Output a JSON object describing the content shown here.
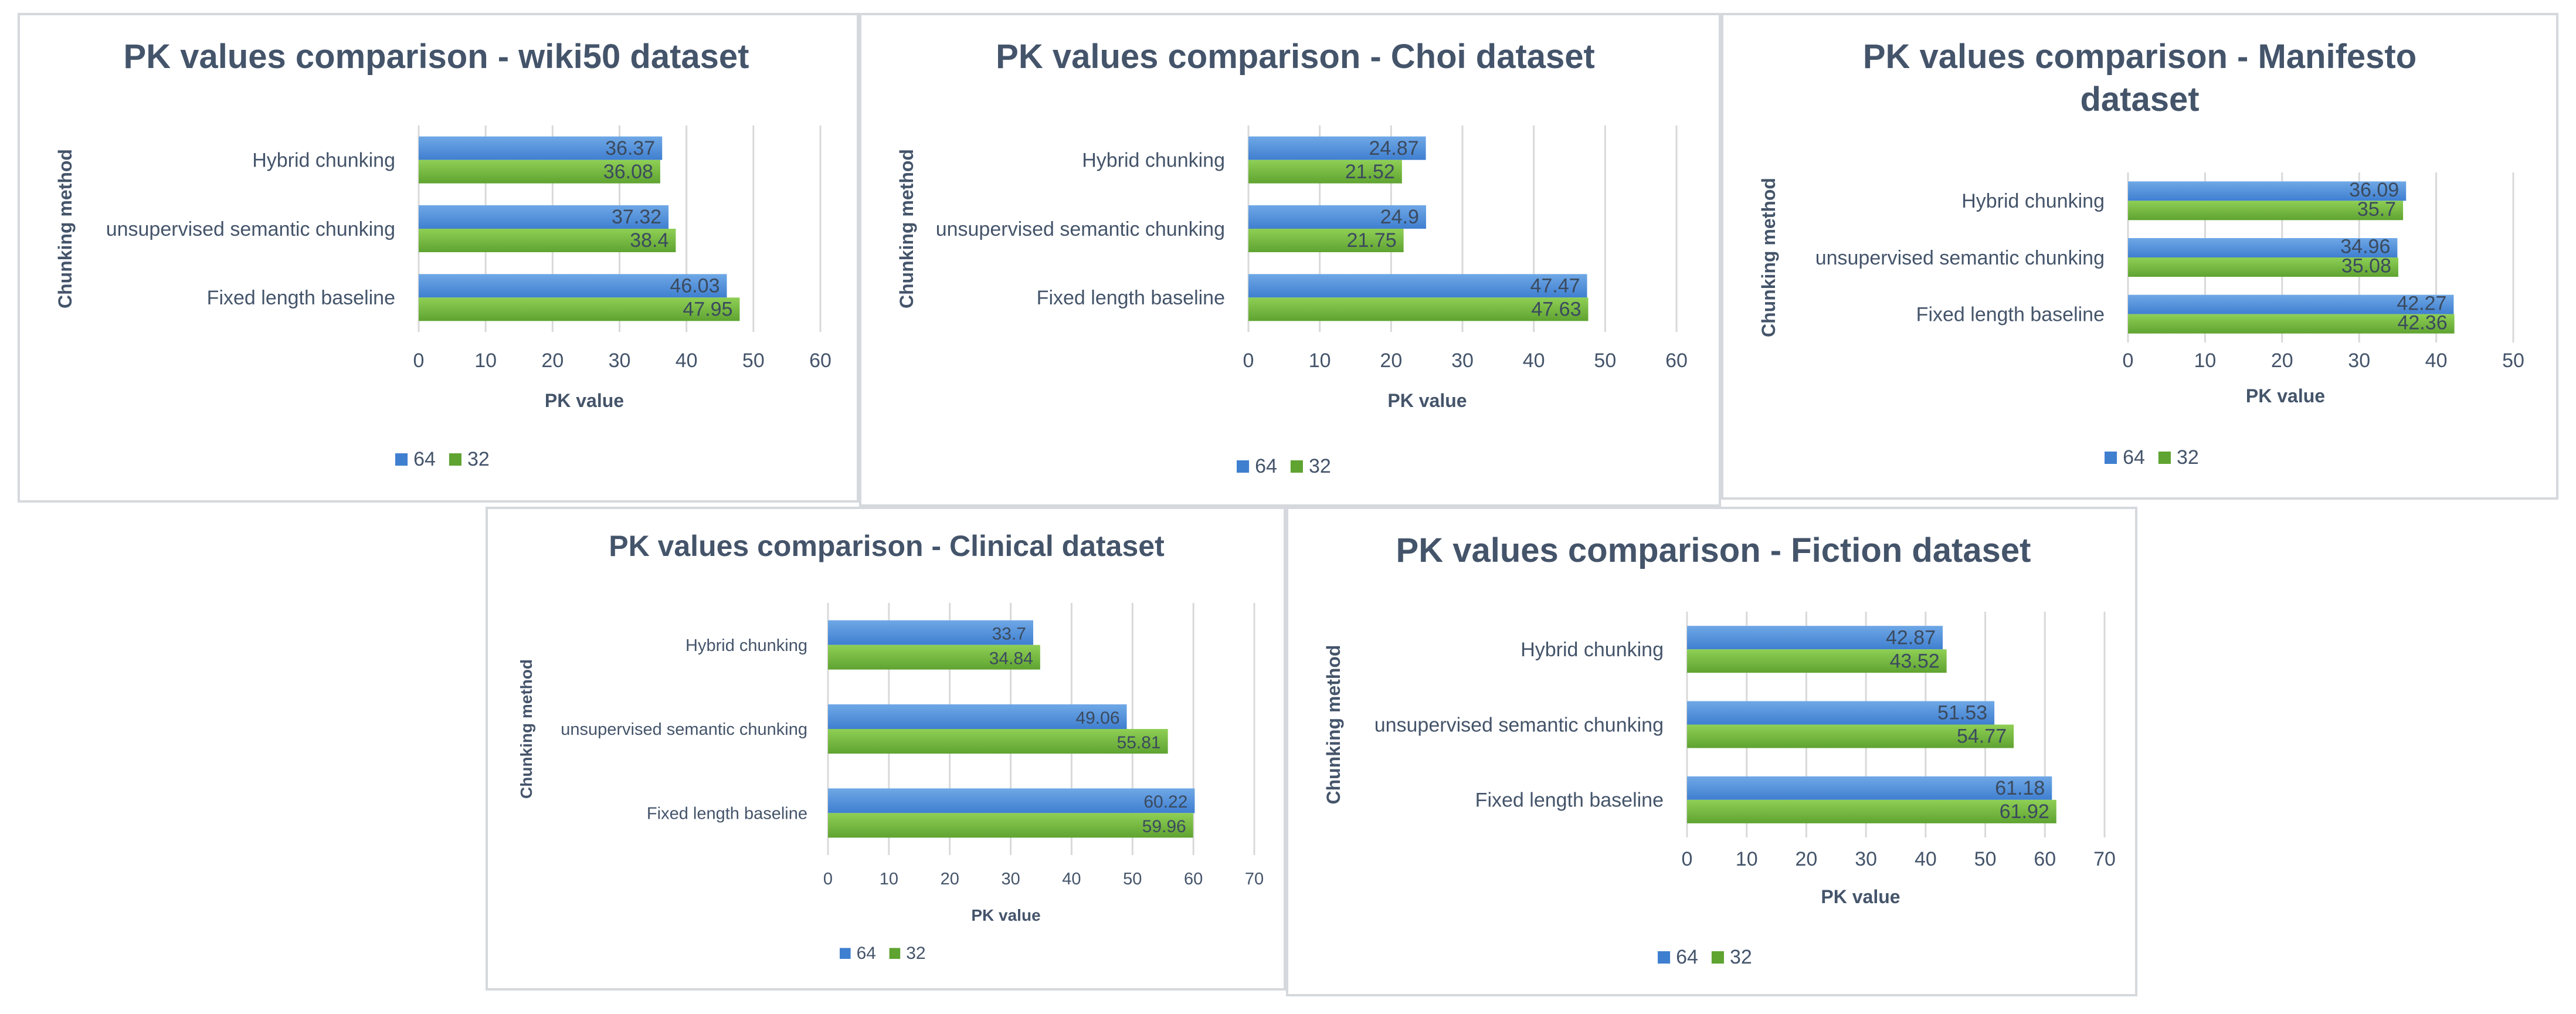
{
  "colors": {
    "series_64_top": "#6fa8e6",
    "series_64_bottom": "#3f7fd0",
    "series_32_top": "#8fcf55",
    "series_32_bottom": "#5fa331"
  },
  "chart_data": [
    {
      "type": "bar",
      "orientation": "horizontal",
      "title": "PK values comparison - wiki50 dataset",
      "xlabel": "PK value",
      "ylabel": "Chunking method",
      "categories": [
        "Hybrid chunking",
        "unsupervised semantic chunking",
        "Fixed length baseline"
      ],
      "series": [
        {
          "name": "64",
          "values": [
            36.37,
            37.32,
            46.03
          ]
        },
        {
          "name": "32",
          "values": [
            36.08,
            38.4,
            47.95
          ]
        }
      ],
      "xlim": [
        0,
        60
      ],
      "xticks": [
        "0",
        "10",
        "20",
        "30",
        "40",
        "50",
        "60"
      ],
      "data_labels": {
        "64": [
          "36.37",
          "37.32",
          "46.03"
        ],
        "32": [
          "36.08",
          "38.4",
          "47.95"
        ]
      },
      "legend": [
        "64",
        "32"
      ],
      "legend_position": "bottom",
      "grid": true
    },
    {
      "type": "bar",
      "orientation": "horizontal",
      "title": "PK values comparison - Choi dataset",
      "xlabel": "PK value",
      "ylabel": "Chunking method",
      "categories": [
        "Hybrid chunking",
        "unsupervised semantic chunking",
        "Fixed length baseline"
      ],
      "series": [
        {
          "name": "64",
          "values": [
            24.87,
            24.9,
            47.47
          ]
        },
        {
          "name": "32",
          "values": [
            21.52,
            21.75,
            47.63
          ]
        }
      ],
      "xlim": [
        0,
        60
      ],
      "xticks": [
        "0",
        "10",
        "20",
        "30",
        "40",
        "50",
        "60"
      ],
      "data_labels": {
        "64": [
          "24.87",
          "24.9",
          "47.47"
        ],
        "32": [
          "21.52",
          "21.75",
          "47.63"
        ]
      },
      "legend": [
        "64",
        "32"
      ],
      "legend_position": "bottom",
      "grid": true
    },
    {
      "type": "bar",
      "orientation": "horizontal",
      "title": "PK values comparison - Manifesto dataset",
      "xlabel": "PK value",
      "ylabel": "Chunking method",
      "categories": [
        "Hybrid chunking",
        "unsupervised semantic chunking",
        "Fixed length baseline"
      ],
      "series": [
        {
          "name": "64",
          "values": [
            36.09,
            34.96,
            42.27
          ]
        },
        {
          "name": "32",
          "values": [
            35.7,
            35.08,
            42.36
          ]
        }
      ],
      "xlim": [
        0,
        50
      ],
      "xticks": [
        "0",
        "10",
        "20",
        "30",
        "40",
        "50"
      ],
      "data_labels": {
        "64": [
          "36.09",
          "34.96",
          "42.27"
        ],
        "32": [
          "35.7",
          "35.08",
          "42.36"
        ]
      },
      "legend": [
        "64",
        "32"
      ],
      "legend_position": "bottom",
      "grid": true
    },
    {
      "type": "bar",
      "orientation": "horizontal",
      "title": "PK values comparison - Clinical dataset",
      "xlabel": "PK value",
      "ylabel": "Chunking method",
      "categories": [
        "Hybrid chunking",
        "unsupervised semantic chunking",
        "Fixed length baseline"
      ],
      "series": [
        {
          "name": "64",
          "values": [
            33.7,
            49.06,
            60.22
          ]
        },
        {
          "name": "32",
          "values": [
            34.84,
            55.81,
            59.96
          ]
        }
      ],
      "xlim": [
        0,
        70
      ],
      "xticks": [
        "0",
        "10",
        "20",
        "30",
        "40",
        "50",
        "60",
        "70"
      ],
      "data_labels": {
        "64": [
          "33.7",
          "49.06",
          "60.22"
        ],
        "32": [
          "34.84",
          "55.81",
          "59.96"
        ]
      },
      "legend": [
        "64",
        "32"
      ],
      "legend_position": "bottom",
      "grid": true
    },
    {
      "type": "bar",
      "orientation": "horizontal",
      "title": "PK values comparison - Fiction dataset",
      "xlabel": "PK value",
      "ylabel": "Chunking method",
      "categories": [
        "Hybrid chunking",
        "unsupervised semantic chunking",
        "Fixed length baseline"
      ],
      "series": [
        {
          "name": "64",
          "values": [
            42.87,
            51.53,
            61.18
          ]
        },
        {
          "name": "32",
          "values": [
            43.52,
            54.77,
            61.92
          ]
        }
      ],
      "xlim": [
        0,
        70
      ],
      "xticks": [
        "0",
        "10",
        "20",
        "30",
        "40",
        "50",
        "60",
        "70"
      ],
      "data_labels": {
        "64": [
          "42.87",
          "51.53",
          "61.18"
        ],
        "32": [
          "43.52",
          "54.77",
          "61.92"
        ]
      },
      "legend": [
        "64",
        "32"
      ],
      "legend_position": "bottom",
      "grid": true
    }
  ]
}
